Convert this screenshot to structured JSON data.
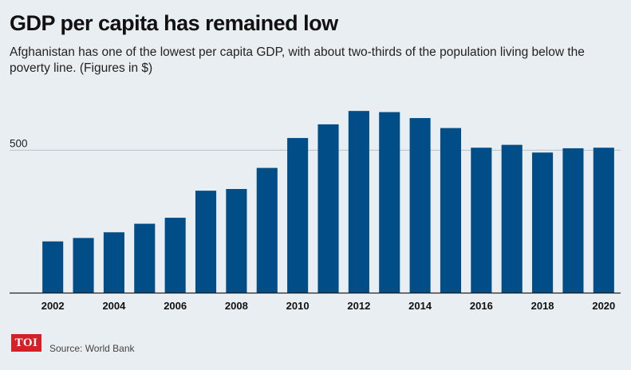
{
  "header": {
    "title": "GDP per capita has remained low",
    "subtitle": "Afghanistan has one of the lowest per capita GDP, with about two-thirds of the population living below the poverty line. (Figures in $)"
  },
  "footer": {
    "logo_text": "TOI",
    "source": "Source: World Bank"
  },
  "colors": {
    "bar": "#004d88",
    "logo": "#d42027",
    "background": "#e9eef2"
  },
  "chart_data": {
    "type": "bar",
    "categories": [
      "2002",
      "2003",
      "2004",
      "2005",
      "2006",
      "2007",
      "2008",
      "2009",
      "2010",
      "2011",
      "2012",
      "2013",
      "2014",
      "2015",
      "2016",
      "2017",
      "2018",
      "2019",
      "2020"
    ],
    "values": [
      180,
      192,
      212,
      242,
      263,
      358,
      364,
      438,
      543,
      591,
      638,
      634,
      613,
      578,
      509,
      519,
      492,
      507,
      509
    ],
    "x_tick_labels": [
      "2002",
      "2004",
      "2006",
      "2008",
      "2010",
      "2012",
      "2014",
      "2016",
      "2018",
      "2020"
    ],
    "y_ticks": [
      500
    ],
    "ylim": [
      0,
      700
    ],
    "title": "GDP per capita has remained low",
    "xlabel": "",
    "ylabel": "",
    "grid": "horizontal gridline at 500",
    "legend": "none"
  }
}
